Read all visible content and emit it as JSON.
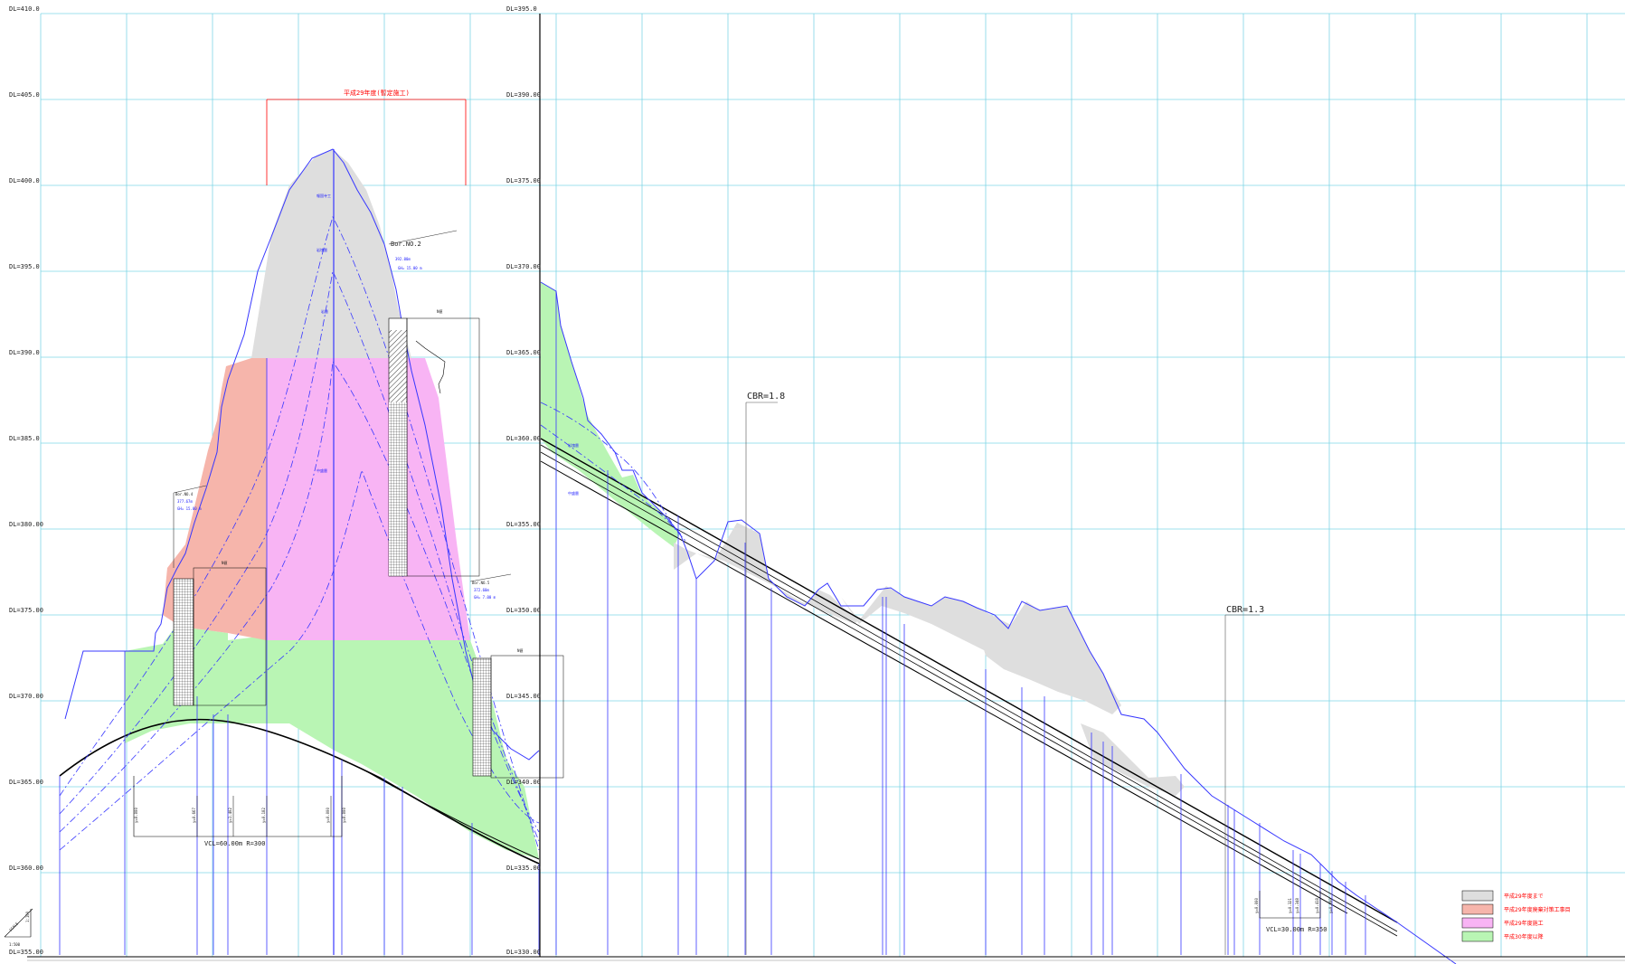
{
  "left_profile": {
    "elevation_labels": [
      "DL=410.0",
      "DL=405.0",
      "DL=400.0",
      "DL=395.0",
      "DL=390.0",
      "DL=385.0",
      "DL=380.00",
      "DL=375.00",
      "DL=370.00",
      "DL=365.00",
      "DL=360.00",
      "DL=355.00"
    ],
    "construction_span_label": "平成29年度(暫定施工)",
    "zone_labels": [
      "報国寺工",
      "岩塊層",
      "岩層",
      "中盛層"
    ],
    "boring_top": {
      "title": "Bor.NO.2",
      "elev": "392.00m",
      "depth": "GH= 15.00 m",
      "header": "N値"
    },
    "boring_left": {
      "title": "Bor.NO.4",
      "elev": "377.67m",
      "depth": "GH= 15.00 m",
      "header": "N値"
    },
    "boring_right": {
      "title": "Bor.NO.5",
      "elev": "372.60m",
      "depth": "GH= 7.00 m",
      "header": "N値"
    },
    "vertical_curve": {
      "label": "VCL=60.00m  R=300",
      "ordinates": [
        "y=0.000",
        "y=0.667",
        "y=1.402",
        "y=0.182",
        "y=0.000",
        "y=0.000"
      ]
    }
  },
  "right_profile": {
    "elevation_labels": [
      "DL=395.0",
      "DL=390.00",
      "DL=375.00",
      "DL=370.00",
      "DL=365.00",
      "DL=360.00",
      "DL=355.00",
      "DL=350.00",
      "DL=345.00",
      "DL=340.00",
      "DL=335.00",
      "DL=330.00"
    ],
    "cbr_upper": "CBR=1.8",
    "cbr_lower": "CBR=1.3",
    "zone_labels": [
      "岩塊層",
      "中盛層"
    ],
    "vertical_curve": {
      "label": "VCL=30.00m  R=350",
      "ordinates": [
        "y=0.000",
        "y=0.321",
        "y=0.348",
        "y=0.418",
        "y=0.000"
      ]
    }
  },
  "scale_box": {
    "title": "SCALE",
    "vertical": "1:100",
    "horizontal": "1:500"
  },
  "legend": [
    {
      "label": "平成29年度まで",
      "color": "#dedede"
    },
    {
      "label": "平成29年度廃棄対策工事目",
      "color": "#f6b5ab"
    },
    {
      "label": "平成29年度施工",
      "color": "#f8b4f4"
    },
    {
      "label": "平成30年度以降",
      "color": "#b9f5b4"
    }
  ]
}
